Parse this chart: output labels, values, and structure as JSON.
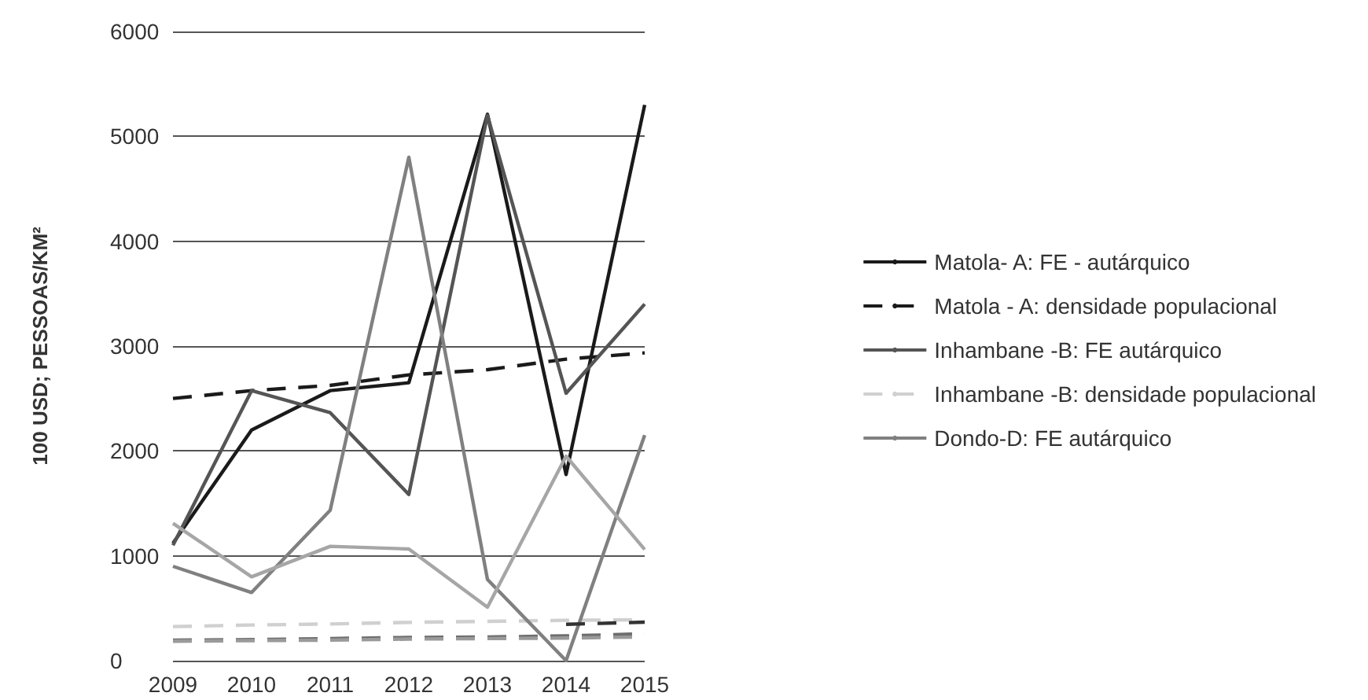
{
  "chart_data": {
    "type": "line",
    "ylabel": "100 USD; PESSOAS/KM²",
    "categories": [
      "2009",
      "2010",
      "2011",
      "2012",
      "2013",
      "2014",
      "2015"
    ],
    "ylim": [
      0,
      6000
    ],
    "yticks": [
      0,
      1000,
      2000,
      3000,
      4000,
      5000,
      6000
    ],
    "grid": "y",
    "legend": "right",
    "marker": "none",
    "series": [
      {
        "name": "Matola- A: FE - autárquico",
        "color": "#1a1a1a",
        "line_style": "solid",
        "values": [
          1120,
          2200,
          2575,
          2650,
          5210,
          1775,
          5300
        ]
      },
      {
        "name": "Matola - A: densidade populacional",
        "color": "#1a1a1a",
        "line_style": "dashed",
        "values": [
          2500,
          2575,
          2625,
          2725,
          2775,
          2875,
          2935
        ]
      },
      {
        "name": "Inhambane -B: FE autárquico",
        "color": "#555555",
        "line_style": "solid",
        "values": [
          1100,
          2575,
          2365,
          1585,
          5200,
          2550,
          3400
        ]
      },
      {
        "name": "Inhambane -B: densidade populacional",
        "color": "#d0d0d0",
        "line_style": "dashed",
        "values": [
          325,
          340,
          350,
          365,
          375,
          385,
          390
        ]
      },
      {
        "name": "Dondo-D: FE autárquico",
        "color": "#808080",
        "line_style": "solid",
        "values": [
          900,
          650,
          1435,
          4800,
          775,
          0,
          2150
        ]
      },
      {
        "color": "#a6a6a6",
        "line_style": "solid",
        "values": [
          1310,
          800,
          1090,
          1065,
          510,
          1950,
          1060
        ]
      },
      {
        "color": "#333333",
        "line_style": "dashed",
        "values": [
          null,
          null,
          null,
          null,
          null,
          347,
          367
        ]
      },
      {
        "color": "#6e6e6e",
        "line_style": "dashed",
        "values": [
          196,
          201,
          211,
          221,
          226,
          236,
          256
        ]
      },
      {
        "color": "#9a9a9a",
        "line_style": "dashed",
        "values": [
          186,
          191,
          196,
          206,
          211,
          216,
          226
        ]
      }
    ]
  }
}
